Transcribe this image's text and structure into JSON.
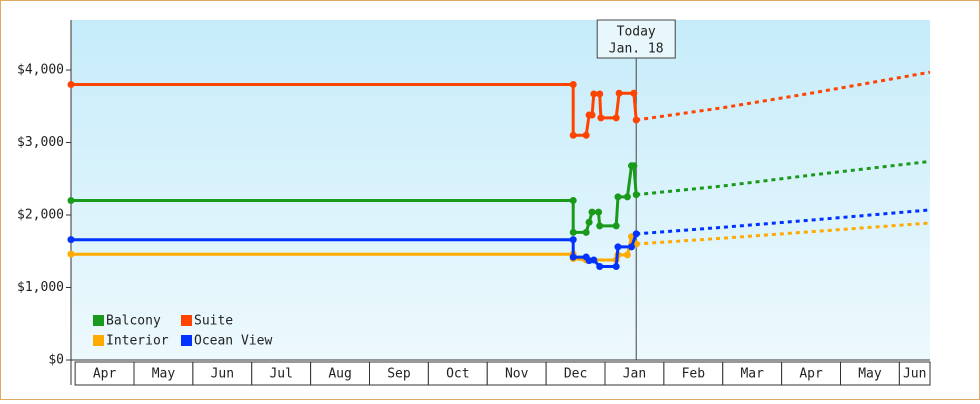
{
  "chart_data": {
    "type": "line",
    "annotation": {
      "lines": [
        "Today",
        "Jan. 18"
      ],
      "x": 9.53
    },
    "xlim": [
      -0.07,
      14.52
    ],
    "xticks": [
      {
        "value": 0,
        "label": "Apr"
      },
      {
        "value": 1,
        "label": "May"
      },
      {
        "value": 2,
        "label": "Jun"
      },
      {
        "value": 3,
        "label": "Jul"
      },
      {
        "value": 4,
        "label": "Aug"
      },
      {
        "value": 5,
        "label": "Sep"
      },
      {
        "value": 6,
        "label": "Oct"
      },
      {
        "value": 7,
        "label": "Nov"
      },
      {
        "value": 8,
        "label": "Dec"
      },
      {
        "value": 9,
        "label": "Jan"
      },
      {
        "value": 10,
        "label": "Feb"
      },
      {
        "value": 11,
        "label": "Mar"
      },
      {
        "value": 12,
        "label": "Apr"
      },
      {
        "value": 13,
        "label": "May"
      },
      {
        "value": 14,
        "label": "Jun"
      }
    ],
    "ylim": [
      0,
      4690
    ],
    "yticks": [
      {
        "value": 0,
        "label": "$0"
      },
      {
        "value": 1000,
        "label": "$1,000"
      },
      {
        "value": 2000,
        "label": "$2,000"
      },
      {
        "value": 3000,
        "label": "$3,000"
      },
      {
        "value": 4000,
        "label": "$4,000"
      }
    ],
    "legend": "lower left",
    "series": [
      {
        "name": "Balcony",
        "color": "#1a9a1a",
        "x": [
          -0.07,
          8.46,
          8.46,
          8.68,
          8.73,
          8.78,
          8.89,
          8.91,
          9.19,
          9.22,
          9.38,
          9.45,
          9.49,
          9.53
        ],
        "values": [
          2200,
          2200,
          1760,
          1760,
          1900,
          2040,
          2040,
          1850,
          1850,
          2250,
          2250,
          2680,
          2680,
          2280
        ],
        "forecast_x": [
          9.53,
          11,
          12.5,
          14.52
        ],
        "forecast_values": [
          2280,
          2400,
          2550,
          2740
        ]
      },
      {
        "name": "Suite",
        "color": "#ff4400",
        "x": [
          -0.07,
          8.46,
          8.46,
          8.68,
          8.73,
          8.78,
          8.81,
          8.91,
          8.93,
          9.19,
          9.24,
          9.49,
          9.53
        ],
        "values": [
          3800,
          3800,
          3100,
          3100,
          3380,
          3380,
          3670,
          3670,
          3340,
          3340,
          3680,
          3680,
          3310
        ],
        "forecast_x": [
          9.53,
          11,
          12.5,
          14.52
        ],
        "forecast_values": [
          3310,
          3480,
          3680,
          3970
        ]
      },
      {
        "name": "Interior",
        "color": "#ffaa00",
        "x": [
          -0.07,
          8.46,
          8.46,
          8.68,
          9.19,
          9.22,
          9.38,
          9.45,
          9.53
        ],
        "values": [
          1460,
          1460,
          1400,
          1380,
          1380,
          1450,
          1450,
          1700,
          1600
        ],
        "forecast_x": [
          9.53,
          11,
          12.5,
          14.52
        ],
        "forecast_values": [
          1600,
          1680,
          1770,
          1890
        ]
      },
      {
        "name": "Ocean View",
        "color": "#0033ff",
        "x": [
          -0.07,
          8.46,
          8.46,
          8.68,
          8.73,
          8.81,
          8.91,
          9.19,
          9.22,
          9.45,
          9.53
        ],
        "values": [
          1660,
          1660,
          1420,
          1420,
          1370,
          1380,
          1290,
          1290,
          1560,
          1560,
          1740
        ],
        "forecast_x": [
          9.53,
          11,
          12.5,
          14.52
        ],
        "forecast_values": [
          1740,
          1830,
          1930,
          2070
        ]
      }
    ]
  }
}
